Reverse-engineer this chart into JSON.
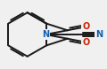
{
  "bg_color": "#f0f0f0",
  "bond_color": "#1a1a1a",
  "atom_colors": {
    "N": "#1060b0",
    "O": "#cc2200",
    "C": "#1a1a1a"
  },
  "bond_width": 1.4,
  "figsize": [
    1.2,
    0.78
  ],
  "dpi": 100,
  "font_size_atom": 7.0,
  "font_size_atom_small": 6.5
}
